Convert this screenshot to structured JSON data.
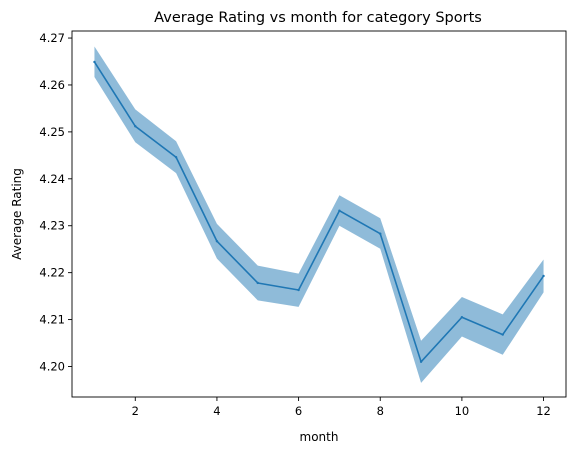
{
  "chart_data": {
    "type": "line",
    "title": "Average Rating vs month for category Sports",
    "xlabel": "month",
    "ylabel": "Average Rating",
    "xlim": [
      0.45,
      12.55
    ],
    "ylim": [
      4.1935,
      4.2715
    ],
    "x_ticks": [
      2,
      4,
      6,
      8,
      10,
      12
    ],
    "y_ticks": [
      4.2,
      4.21,
      4.22,
      4.23,
      4.24,
      4.25,
      4.26,
      4.27
    ],
    "y_tick_labels": [
      "4.20",
      "4.21",
      "4.22",
      "4.23",
      "4.24",
      "4.25",
      "4.26",
      "4.27"
    ],
    "grid": false,
    "colors": {
      "line": "#1f77b4",
      "band": "#1f77b4"
    },
    "series": [
      {
        "x": [
          1,
          2,
          3,
          4,
          5,
          6,
          7,
          8,
          9,
          10,
          11,
          12
        ],
        "values": [
          4.2649,
          4.2512,
          4.2446,
          4.2267,
          4.2178,
          4.2163,
          4.2332,
          4.2283,
          4.201,
          4.2105,
          4.2068,
          4.2193
        ],
        "ci_lower": [
          4.2617,
          4.2478,
          4.2412,
          4.223,
          4.2141,
          4.2127,
          4.23,
          4.2251,
          4.1965,
          4.2064,
          4.2025,
          4.2158
        ],
        "ci_upper": [
          4.2682,
          4.2548,
          4.248,
          4.2304,
          4.2215,
          4.2198,
          4.2365,
          4.2316,
          4.2055,
          4.2148,
          4.2111,
          4.2228
        ]
      }
    ]
  }
}
